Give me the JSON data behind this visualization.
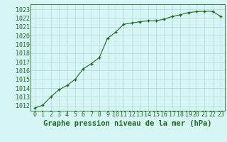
{
  "x": [
    0,
    1,
    2,
    3,
    4,
    5,
    6,
    7,
    8,
    9,
    10,
    11,
    12,
    13,
    14,
    15,
    16,
    17,
    18,
    19,
    20,
    21,
    22,
    23
  ],
  "y": [
    1011.7,
    1012.05,
    1013.0,
    1013.8,
    1014.3,
    1015.0,
    1016.2,
    1016.8,
    1017.5,
    1019.7,
    1020.4,
    1021.3,
    1021.45,
    1021.6,
    1021.7,
    1021.7,
    1021.9,
    1022.2,
    1022.4,
    1022.65,
    1022.75,
    1022.8,
    1022.8,
    1022.2
  ],
  "line_color": "#1e6b1e",
  "marker": "+",
  "bg_color": "#d6f5f5",
  "grid_color": "#b8d8d8",
  "ylabel_values": [
    1012,
    1013,
    1014,
    1015,
    1016,
    1017,
    1018,
    1019,
    1020,
    1021,
    1022,
    1023
  ],
  "ylim": [
    1011.4,
    1023.6
  ],
  "xlim": [
    -0.5,
    23.5
  ],
  "xlabel": "Graphe pression niveau de la mer (hPa)",
  "tick_color": "#1e6b1e",
  "axis_color": "#1e6b1e",
  "label_fontsize": 6.0,
  "xlabel_fontsize": 7.5
}
